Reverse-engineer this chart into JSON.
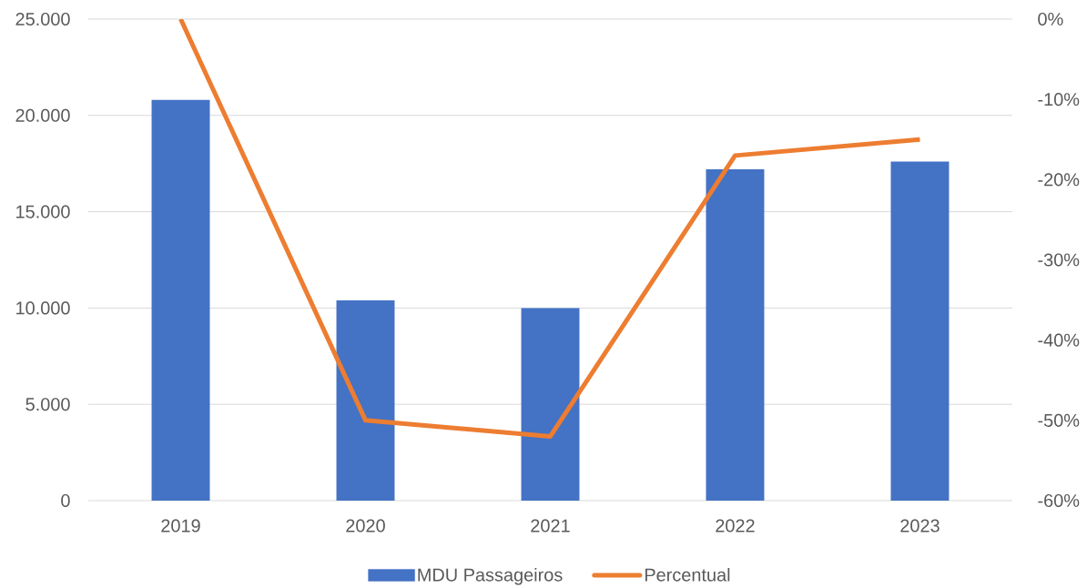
{
  "chart_data": {
    "type": "bar",
    "categories": [
      "2019",
      "2020",
      "2021",
      "2022",
      "2023"
    ],
    "series": [
      {
        "name": "MDU Passageiros",
        "color": "#4472c4",
        "values": [
          20800,
          10400,
          10000,
          17200,
          17600
        ]
      },
      {
        "name": "Percentual",
        "type": "line",
        "axis": "y2",
        "color": "#ed7d31",
        "marker": "none",
        "line_style": "solid",
        "values": [
          0,
          -50,
          -52,
          -17,
          -15
        ]
      }
    ],
    "ylim": [
      0,
      25000
    ],
    "yticks": [
      0,
      {
        "value": 5000,
        "label": "5.000"
      },
      {
        "value": 10000,
        "label": "10.000"
      },
      {
        "value": 15000,
        "label": "15.000"
      },
      {
        "value": 20000,
        "label": "20.000"
      },
      {
        "value": 25000,
        "label": "25.000"
      }
    ],
    "y2lim": [
      -60,
      0
    ],
    "y2ticks": [
      {
        "value": -60,
        "label": "-60%"
      },
      {
        "value": -50,
        "label": "-50%"
      },
      {
        "value": -40,
        "label": "-40%"
      },
      {
        "value": -30,
        "label": "-30%"
      },
      {
        "value": -20,
        "label": "-20%"
      },
      {
        "value": -10,
        "label": "-10%"
      },
      {
        "value": 0,
        "label": "0%"
      }
    ],
    "grid": "y",
    "legend": "bottom"
  }
}
